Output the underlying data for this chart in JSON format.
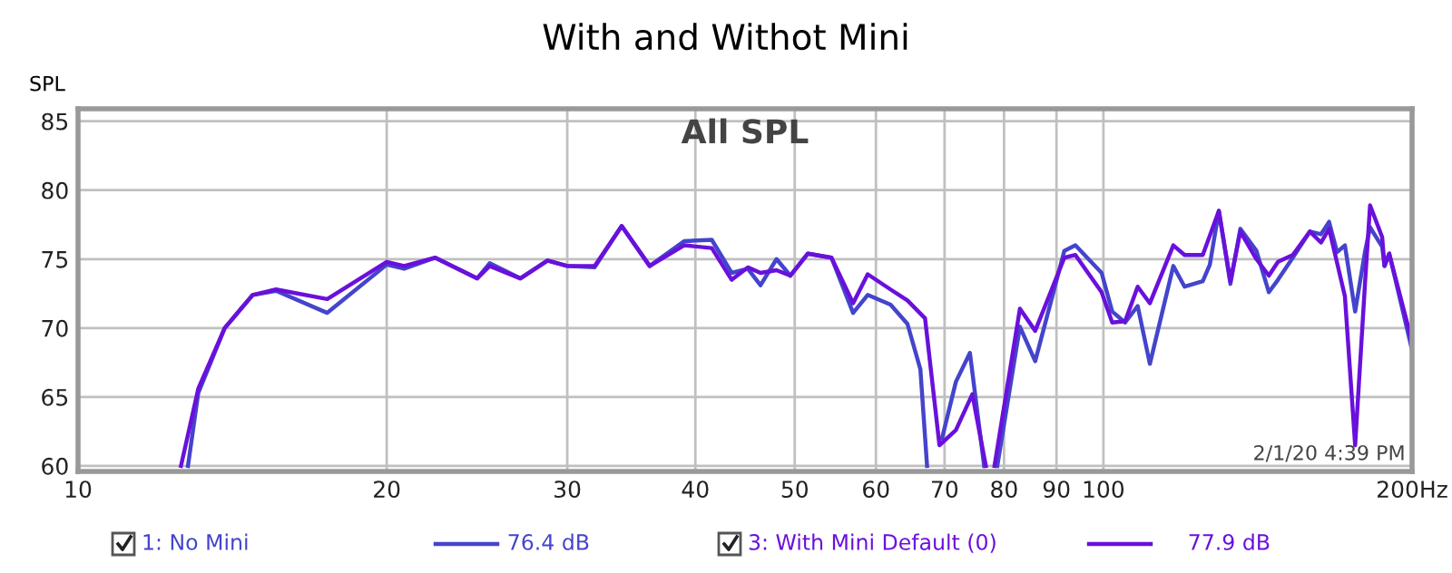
{
  "chart_data": {
    "type": "line",
    "title": "With and Withot Mini",
    "ylabel": "SPL",
    "log": "x",
    "xlim": [
      10,
      200
    ],
    "ylim": [
      59.6,
      85.9
    ],
    "xticks": [
      10,
      20,
      30,
      40,
      50,
      60,
      70,
      80,
      90,
      100,
      {
        "value": 200,
        "label": "200Hz"
      }
    ],
    "yticks": [
      60,
      65,
      70,
      75,
      80,
      85
    ],
    "grid": true,
    "legend": "bottom",
    "line_style": "solid",
    "marker": "none",
    "annotations": [
      "All SPL",
      "2/1/20 4:39 PM",
      "76.4 dB",
      "77.9 dB"
    ],
    "series": [
      {
        "name": "1: No Mini",
        "color": "#4444cc",
        "x": [
          12.8,
          13.1,
          13.9,
          14.8,
          15.6,
          17.5,
          20,
          20.8,
          22.3,
          24.5,
          25.2,
          27.0,
          28.7,
          30.0,
          31.9,
          33.9,
          36.1,
          39.0,
          41.5,
          43.4,
          45.0,
          46.3,
          48.0,
          49.5,
          51.5,
          54.3,
          57.0,
          58.9,
          62.0,
          64.4,
          66.3,
          67.3,
          68.0,
          69.6,
          71.8,
          74.1,
          76.5,
          77.5,
          78.8,
          82.9,
          85.8,
          91.6,
          93.9,
          99.6,
          102,
          105,
          108,
          111,
          117,
          120,
          125,
          127,
          129.6,
          133,
          136,
          141,
          145,
          148,
          153,
          159,
          163,
          166,
          169,
          172,
          176,
          180,
          182,
          187,
          188,
          190,
          200
        ],
        "values": [
          60.0,
          65.3,
          70.0,
          72.4,
          72.7,
          71.1,
          74.6,
          74.3,
          75.1,
          73.6,
          74.7,
          73.6,
          74.9,
          74.5,
          74.4,
          77.4,
          74.5,
          76.3,
          76.4,
          74.0,
          74.3,
          73.1,
          75.0,
          73.8,
          75.4,
          75.1,
          71.1,
          72.4,
          71.7,
          70.3,
          67.0,
          60.0,
          null,
          62.0,
          66.1,
          68.2,
          60.0,
          null,
          60.0,
          70.1,
          67.6,
          75.6,
          76.0,
          74.0,
          71.2,
          70.4,
          71.6,
          67.4,
          74.5,
          73.0,
          73.4,
          74.6,
          78.5,
          73.2,
          77.2,
          75.6,
          72.6,
          73.5,
          75.1,
          77.0,
          76.8,
          77.7,
          75.5,
          76.0,
          71.2,
          75.6,
          77.3,
          75.9,
          74.5,
          75.4,
          68.4
        ]
      },
      {
        "name": "3: With Mini Default (0)",
        "color": "#6a10dc",
        "x": [
          12.6,
          13.1,
          13.9,
          14.8,
          15.6,
          17.5,
          20,
          20.8,
          22.3,
          24.5,
          25.2,
          27.0,
          28.7,
          30.0,
          31.9,
          33.9,
          36.1,
          39.0,
          41.5,
          43.4,
          45.0,
          46.3,
          48.0,
          49.5,
          51.5,
          54.3,
          57.0,
          58.9,
          62.0,
          64.4,
          67.0,
          69.2,
          71.8,
          74.5,
          76.8,
          77.5,
          78.3,
          82.9,
          85.8,
          91.6,
          93.9,
          99.6,
          102,
          105,
          108,
          111,
          117,
          120,
          125,
          129.6,
          133,
          136,
          141,
          145,
          148,
          153,
          159,
          163,
          166,
          172,
          176,
          180,
          182,
          187,
          188,
          190,
          200
        ],
        "values": [
          60.0,
          65.6,
          70.0,
          72.4,
          72.8,
          72.1,
          74.8,
          74.5,
          75.1,
          73.6,
          74.5,
          73.6,
          74.9,
          74.5,
          74.5,
          77.4,
          74.5,
          76.0,
          75.8,
          73.5,
          74.4,
          74.0,
          74.2,
          73.8,
          75.4,
          75.1,
          71.8,
          73.9,
          72.8,
          72.0,
          70.7,
          61.5,
          62.6,
          65.2,
          60.0,
          null,
          60.0,
          71.4,
          69.8,
          75.1,
          75.3,
          72.6,
          70.4,
          70.5,
          73.0,
          71.8,
          76.0,
          75.3,
          75.3,
          78.5,
          73.4,
          77.0,
          75.0,
          73.8,
          74.8,
          75.3,
          77.0,
          76.2,
          77.2,
          72.3,
          61.5,
          73.4,
          78.9,
          76.6,
          74.5,
          75.4,
          69.0
        ]
      }
    ]
  }
}
